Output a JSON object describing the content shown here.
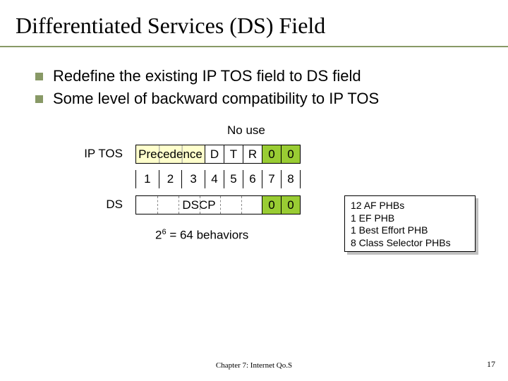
{
  "title": "Differentiated Services (DS) Field",
  "bullets": [
    "Redefine the existing IP TOS field to DS field",
    "Some level of backward compatibility to IP TOS"
  ],
  "no_use_label": "No use",
  "row_labels": {
    "iptos": "IP TOS",
    "ds": "DS"
  },
  "iptos_row": {
    "precedence": "Precedence",
    "cells": [
      "D",
      "T",
      "R",
      "0",
      "0"
    ]
  },
  "bit_numbers": [
    "1",
    "2",
    "3",
    "4",
    "5",
    "6",
    "7",
    "8"
  ],
  "ds_row": {
    "dscp": "DSCP",
    "cells": [
      "0",
      "0"
    ]
  },
  "behaviors_text": {
    "base": "2",
    "exp": "6",
    "rest": " = 64 behaviors"
  },
  "info_box": [
    "12  AF PHBs",
    "1 EF PHB",
    "1 Best Effort  PHB",
    "8 Class Selector PHBs"
  ],
  "footer": {
    "center": "Chapter 7: Internet Qo.S",
    "page": "17"
  },
  "colors": {
    "precedence_bg": "#ffffcc",
    "green_bg": "#99cc33",
    "cell_w_narrow": 27,
    "cell_w_precedence": 98
  }
}
